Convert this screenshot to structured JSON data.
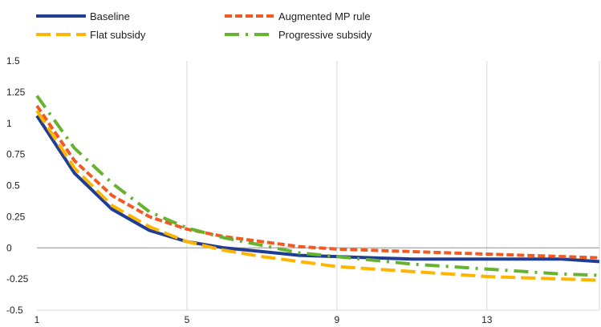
{
  "chart_data": {
    "type": "line",
    "title": "",
    "xlabel": "",
    "ylabel": "",
    "x": [
      1,
      2,
      3,
      4,
      5,
      6,
      7,
      8,
      9,
      10,
      11,
      12,
      13,
      14,
      15,
      16
    ],
    "xticks": [
      "1",
      "5",
      "9",
      "13"
    ],
    "ylim": [
      -0.5,
      1.5
    ],
    "yticks": [
      "1.5",
      "1.25",
      "1",
      "0.75",
      "0.5",
      "0.25",
      "0",
      "-0.25",
      "-0.5"
    ],
    "grid": "vertical",
    "legend_position": "top",
    "series": [
      {
        "name": "Baseline",
        "color": "#1F3E93",
        "style": "solid",
        "values": [
          1.06,
          0.6,
          0.31,
          0.14,
          0.05,
          0.0,
          -0.03,
          -0.06,
          -0.07,
          -0.08,
          -0.09,
          -0.09,
          -0.09,
          -0.09,
          -0.09,
          -0.11
        ]
      },
      {
        "name": "Augmented MP rule",
        "color": "#F15A22",
        "style": "dashed",
        "values": [
          1.14,
          0.7,
          0.42,
          0.25,
          0.15,
          0.09,
          0.05,
          0.01,
          -0.01,
          -0.02,
          -0.03,
          -0.04,
          -0.05,
          -0.06,
          -0.07,
          -0.08
        ]
      },
      {
        "name": "Flat subsidy",
        "color": "#FFB400",
        "style": "longdash",
        "values": [
          1.1,
          0.64,
          0.34,
          0.17,
          0.05,
          -0.02,
          -0.07,
          -0.11,
          -0.15,
          -0.17,
          -0.19,
          -0.21,
          -0.23,
          -0.24,
          -0.25,
          -0.26
        ]
      },
      {
        "name": "Progressive subsidy",
        "color": "#65B32E",
        "style": "dashdot",
        "values": [
          1.22,
          0.8,
          0.52,
          0.29,
          0.16,
          0.08,
          0.02,
          -0.04,
          -0.07,
          -0.1,
          -0.13,
          -0.15,
          -0.17,
          -0.19,
          -0.21,
          -0.22
        ]
      }
    ]
  }
}
